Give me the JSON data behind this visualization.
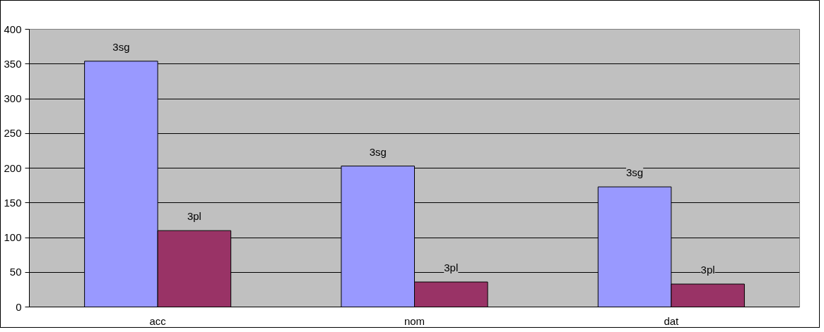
{
  "chart_data": {
    "type": "bar",
    "categories": [
      "acc",
      "nom",
      "dat"
    ],
    "series": [
      {
        "name": "3sg",
        "color": "#9999ff",
        "values": [
          354,
          203,
          173
        ]
      },
      {
        "name": "3pl",
        "color": "#993366",
        "values": [
          110,
          36,
          33
        ]
      }
    ],
    "ylim": [
      0,
      400
    ],
    "yticks": [
      0,
      50,
      100,
      150,
      200,
      250,
      300,
      350,
      400
    ],
    "grid": "y"
  }
}
